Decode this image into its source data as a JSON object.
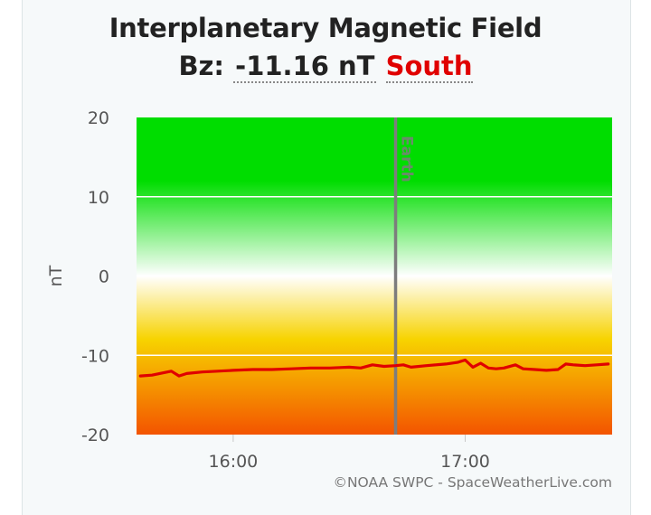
{
  "chart_data": {
    "type": "line",
    "title": "Interplanetary Magnetic Field",
    "subtitle": {
      "prefix": "Bz:",
      "value": "-11.16 nT",
      "direction": "South"
    },
    "ylabel": "nT",
    "xlabel": "",
    "ylim": [
      -20,
      20
    ],
    "yticks": [
      20,
      10,
      0,
      -10,
      -20
    ],
    "xlim": [
      "15:35",
      "17:38"
    ],
    "xticks": [
      {
        "t": "16:00",
        "label": "16:00"
      },
      {
        "t": "17:00",
        "label": "17:00"
      }
    ],
    "grid": true,
    "marker": {
      "t": "16:42",
      "label": "Earth"
    },
    "credit": "©NOAA SWPC - SpaceWeatherLive.com",
    "colors": {
      "line": "#e00000",
      "positive": "#00dd00",
      "neutral": "#ffffff",
      "negative_mid": "#f7d300",
      "negative_low": "#f35400",
      "marker": "#7d7d7d",
      "direction_text": "#e00000"
    },
    "series": [
      {
        "color": "#e00000",
        "points": [
          [
            "15:36",
            -12.6
          ],
          [
            "15:39",
            -12.5
          ],
          [
            "15:42",
            -12.2
          ],
          [
            "15:44",
            -12.0
          ],
          [
            "15:46",
            -12.6
          ],
          [
            "15:48",
            -12.3
          ],
          [
            "15:52",
            -12.1
          ],
          [
            "15:56",
            -12.0
          ],
          [
            "16:00",
            -11.9
          ],
          [
            "16:05",
            -11.8
          ],
          [
            "16:10",
            -11.8
          ],
          [
            "16:15",
            -11.7
          ],
          [
            "16:20",
            -11.6
          ],
          [
            "16:25",
            -11.6
          ],
          [
            "16:30",
            -11.5
          ],
          [
            "16:33",
            -11.6
          ],
          [
            "16:36",
            -11.2
          ],
          [
            "16:39",
            -11.4
          ],
          [
            "16:42",
            -11.3
          ],
          [
            "16:44",
            -11.2
          ],
          [
            "16:46",
            -11.5
          ],
          [
            "16:50",
            -11.3
          ],
          [
            "16:55",
            -11.1
          ],
          [
            "16:58",
            -10.9
          ],
          [
            "17:00",
            -10.6
          ],
          [
            "17:02",
            -11.5
          ],
          [
            "17:04",
            -11.0
          ],
          [
            "17:06",
            -11.6
          ],
          [
            "17:08",
            -11.7
          ],
          [
            "17:10",
            -11.6
          ],
          [
            "17:13",
            -11.2
          ],
          [
            "17:15",
            -11.7
          ],
          [
            "17:18",
            -11.8
          ],
          [
            "17:21",
            -11.9
          ],
          [
            "17:24",
            -11.8
          ],
          [
            "17:26",
            -11.1
          ],
          [
            "17:28",
            -11.2
          ],
          [
            "17:31",
            -11.3
          ],
          [
            "17:34",
            -11.2
          ],
          [
            "17:37",
            -11.1
          ]
        ]
      }
    ]
  }
}
